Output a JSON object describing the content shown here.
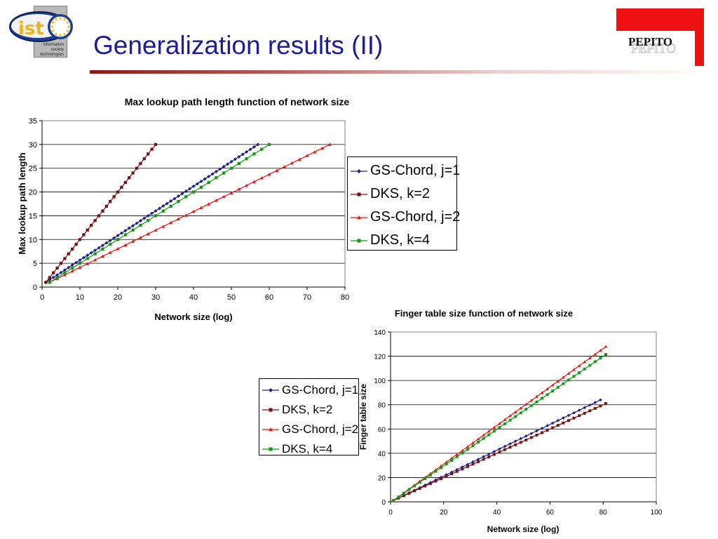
{
  "slide": {
    "title": "Generalization results (II)"
  },
  "logos": {
    "ist": {
      "mark": "ist",
      "caption_lines": [
        "information",
        "society",
        "technologies"
      ]
    },
    "pepito": {
      "text": "PEPITO",
      "accent_color": "#ee1111"
    }
  },
  "chart_data": [
    {
      "type": "line",
      "title": "Max lookup path length function of network size",
      "xlabel": "Network size (log)",
      "ylabel": "Max lookup path length",
      "xlim": [
        0,
        80
      ],
      "ylim": [
        0,
        35
      ],
      "xticks": [
        0,
        10,
        20,
        30,
        40,
        50,
        60,
        70,
        80
      ],
      "yticks": [
        0,
        5,
        10,
        15,
        20,
        25,
        30,
        35
      ],
      "grid": "horizontal",
      "legend_position": "right",
      "series": [
        {
          "name": "GS-Chord, j=1",
          "color": "#1f1f8f",
          "marker": "diamond",
          "x_start": 1,
          "x_step": 1,
          "x_end": 57,
          "y_start": 1,
          "y_end": 30
        },
        {
          "name": "DKS, k=2",
          "color": "#7a1010",
          "marker": "square",
          "x_start": 1,
          "x_step": 1,
          "x_end": 30,
          "y_start": 1,
          "y_end": 30
        },
        {
          "name": "GS-Chord, j=2",
          "color": "#ee1111",
          "marker": "triangle",
          "x_start": 2,
          "x_step": 2,
          "x_end": 76,
          "y_start": 1,
          "y_end": 30
        },
        {
          "name": "DKS, k=4",
          "color": "#119911",
          "marker": "square",
          "x_start": 2,
          "x_step": 2,
          "x_end": 60,
          "y_start": 1,
          "y_end": 30
        }
      ]
    },
    {
      "type": "line",
      "title": "Finger table size function of network size",
      "xlabel": "Network size (log)",
      "ylabel": "Finger table size",
      "xlim": [
        0,
        100
      ],
      "ylim": [
        0,
        140
      ],
      "xticks": [
        0,
        20,
        40,
        60,
        80,
        100
      ],
      "yticks": [
        0,
        20,
        40,
        60,
        80,
        100,
        120,
        140
      ],
      "grid": "horizontal",
      "legend_position": "left",
      "series": [
        {
          "name": "GS-Chord, j=1",
          "color": "#1f1f8f",
          "marker": "diamond",
          "x_start": 1,
          "x_step": 2,
          "x_end": 79,
          "y_start": 1,
          "y_end": 84
        },
        {
          "name": "DKS, k=2",
          "color": "#7a1010",
          "marker": "square",
          "x_start": 1,
          "x_step": 2,
          "x_end": 80,
          "y_start": 1,
          "y_end": 80
        },
        {
          "name": "GS-Chord, j=2",
          "color": "#ee1111",
          "marker": "triangle",
          "x_start": 1,
          "x_step": 2,
          "x_end": 81,
          "y_start": 1,
          "y_end": 128
        },
        {
          "name": "DKS, k=4",
          "color": "#119911",
          "marker": "square",
          "x_start": 1,
          "x_step": 2,
          "x_end": 80,
          "y_start": 1,
          "y_end": 120
        }
      ]
    }
  ]
}
